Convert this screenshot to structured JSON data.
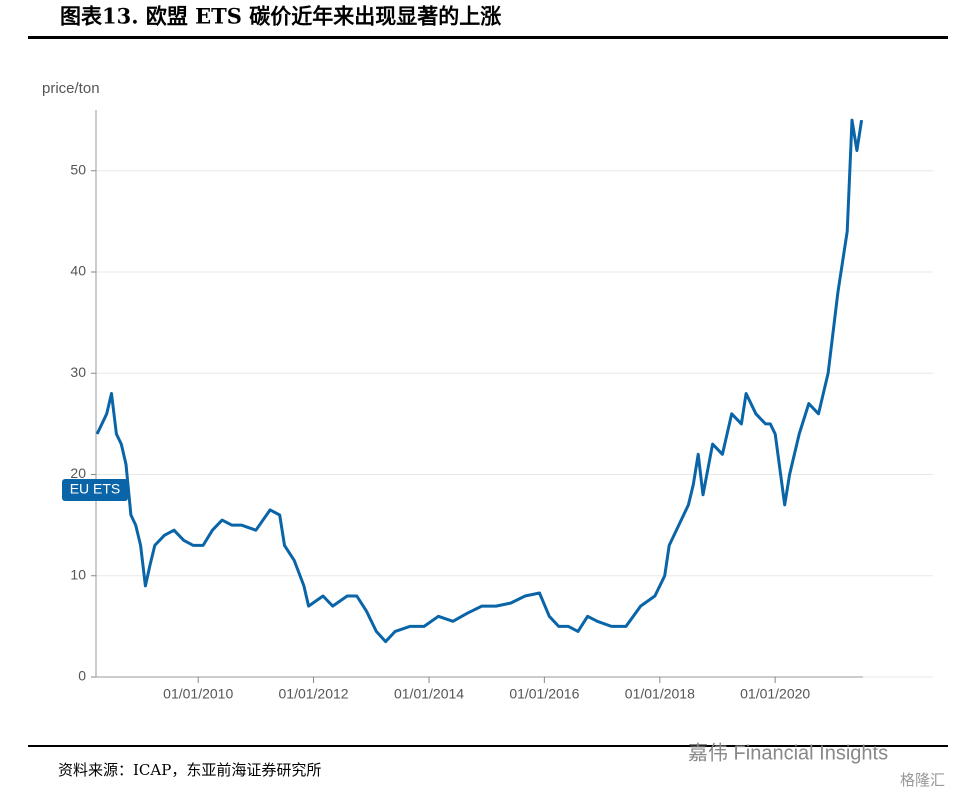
{
  "chart_data": {
    "type": "line",
    "title": "图表13. 欧盟 ETS 碳价近年来出现显著的上涨",
    "y_label": "price/ton",
    "source": "资料来源：ICAP，东亚前海证券研究所",
    "watermark": "嘉伟 Financial Insights",
    "watermark2": "格隆汇",
    "xlim": [
      "2008-03-25",
      "2022-09-26"
    ],
    "xticks": [
      {
        "value": "2010-01-01",
        "label": "01/01/2010"
      },
      {
        "value": "2012-01-01",
        "label": "01/01/2012"
      },
      {
        "value": "2014-01-01",
        "label": "01/01/2014"
      },
      {
        "value": "2016-01-01",
        "label": "01/01/2016"
      },
      {
        "value": "2018-01-01",
        "label": "01/01/2018"
      },
      {
        "value": "2020-01-01",
        "label": "01/01/2020"
      }
    ],
    "ylim": [
      0,
      56
    ],
    "yticks": [
      0,
      10,
      20,
      30,
      40,
      50
    ],
    "grid": true,
    "x": [
      "2008-04-01",
      "2008-06-01",
      "2008-07-01",
      "2008-08-01",
      "2008-09-01",
      "2008-10-01",
      "2008-11-01",
      "2008-12-01",
      "2009-01-01",
      "2009-02-01",
      "2009-03-01",
      "2009-04-01",
      "2009-06-01",
      "2009-08-01",
      "2009-10-01",
      "2009-12-01",
      "2010-02-01",
      "2010-04-01",
      "2010-06-01",
      "2010-08-01",
      "2010-10-01",
      "2011-01-01",
      "2011-04-01",
      "2011-06-01",
      "2011-07-01",
      "2011-09-01",
      "2011-11-01",
      "2011-12-01",
      "2012-03-01",
      "2012-05-01",
      "2012-08-01",
      "2012-10-01",
      "2012-12-01",
      "2013-02-01",
      "2013-04-01",
      "2013-06-01",
      "2013-09-01",
      "2013-12-01",
      "2014-03-01",
      "2014-06-01",
      "2014-09-01",
      "2014-12-01",
      "2015-03-01",
      "2015-06-01",
      "2015-09-01",
      "2015-12-01",
      "2016-02-01",
      "2016-04-01",
      "2016-06-01",
      "2016-08-01",
      "2016-10-01",
      "2016-12-01",
      "2017-03-01",
      "2017-06-01",
      "2017-09-01",
      "2017-12-01",
      "2018-02-01",
      "2018-03-01",
      "2018-05-01",
      "2018-07-01",
      "2018-08-01",
      "2018-09-01",
      "2018-10-01",
      "2018-12-01",
      "2019-02-01",
      "2019-04-01",
      "2019-06-01",
      "2019-07-01",
      "2019-09-01",
      "2019-11-01",
      "2019-12-01",
      "2020-01-01",
      "2020-03-01",
      "2020-04-01",
      "2020-06-01",
      "2020-08-01",
      "2020-10-01",
      "2020-12-01",
      "2021-02-01",
      "2021-04-01",
      "2021-05-01",
      "2021-06-01",
      "2021-07-01"
    ],
    "series": [
      {
        "name": "EU ETS",
        "color": "#0a64a8",
        "values": [
          24,
          26,
          28,
          24,
          23,
          21,
          16,
          15,
          13,
          9,
          11,
          13,
          14,
          14.5,
          13.5,
          13,
          13,
          14.5,
          15.5,
          15,
          15,
          14.5,
          16.5,
          16,
          13,
          11.5,
          9,
          7,
          8,
          7,
          8,
          8,
          6.5,
          4.5,
          3.5,
          4.5,
          5,
          5,
          6,
          5.5,
          6.3,
          7,
          7,
          7.3,
          8,
          8.3,
          6,
          5,
          5,
          4.5,
          6,
          5.5,
          5,
          5,
          7,
          8,
          10,
          13,
          15,
          17,
          19,
          22,
          18,
          23,
          22,
          26,
          25,
          28,
          26,
          25,
          25,
          24,
          17,
          20,
          24,
          27,
          26,
          30,
          38,
          44,
          55,
          52,
          55
        ]
      }
    ]
  }
}
